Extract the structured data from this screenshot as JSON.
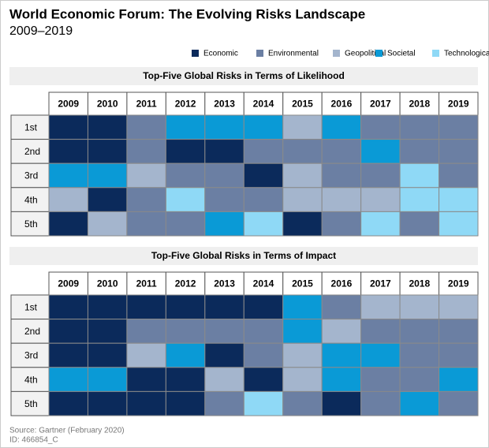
{
  "chart_data": {
    "type": "heatmap",
    "title": "World Economic Forum: The Evolving Risks Landscape",
    "subtitle": "2009–2019",
    "series": [
      {
        "name": "Economic",
        "color": "#0b2a5b"
      },
      {
        "name": "Environmental",
        "color": "#6b7fa3"
      },
      {
        "name": "Geopolitical",
        "color": "#a4b5cd"
      },
      {
        "name": "Societal",
        "color": "#0a9ad6"
      },
      {
        "name": "Technological",
        "color": "#8fd9f6"
      }
    ],
    "columns": [
      2009,
      2010,
      2011,
      2012,
      2013,
      2014,
      2015,
      2016,
      2017,
      2018,
      2019
    ],
    "rows": [
      "1st",
      "2nd",
      "3rd",
      "4th",
      "5th"
    ],
    "panels": [
      {
        "title": "Top-Five Global Risks in Terms of Likelihood",
        "cells": [
          [
            0,
            0,
            1,
            3,
            3,
            3,
            2,
            3,
            1,
            1,
            1
          ],
          [
            0,
            0,
            1,
            0,
            0,
            1,
            1,
            1,
            3,
            1,
            1
          ],
          [
            3,
            3,
            2,
            1,
            1,
            0,
            2,
            1,
            1,
            4,
            1
          ],
          [
            2,
            0,
            1,
            4,
            1,
            1,
            2,
            2,
            2,
            4,
            4
          ],
          [
            0,
            2,
            1,
            1,
            3,
            4,
            0,
            1,
            4,
            1,
            4
          ]
        ]
      },
      {
        "title": "Top-Five Global Risks in Terms of Impact",
        "cells": [
          [
            0,
            0,
            0,
            0,
            0,
            0,
            3,
            1,
            2,
            2,
            2
          ],
          [
            0,
            0,
            1,
            1,
            1,
            1,
            3,
            2,
            1,
            1,
            1
          ],
          [
            0,
            0,
            2,
            3,
            0,
            1,
            2,
            3,
            3,
            1,
            1
          ],
          [
            3,
            3,
            0,
            0,
            2,
            0,
            2,
            3,
            1,
            1,
            3
          ],
          [
            0,
            0,
            0,
            0,
            1,
            4,
            1,
            0,
            1,
            3,
            1
          ]
        ]
      }
    ],
    "source": "Source: Gartner (February 2020)",
    "id": "ID: 466854_C"
  }
}
